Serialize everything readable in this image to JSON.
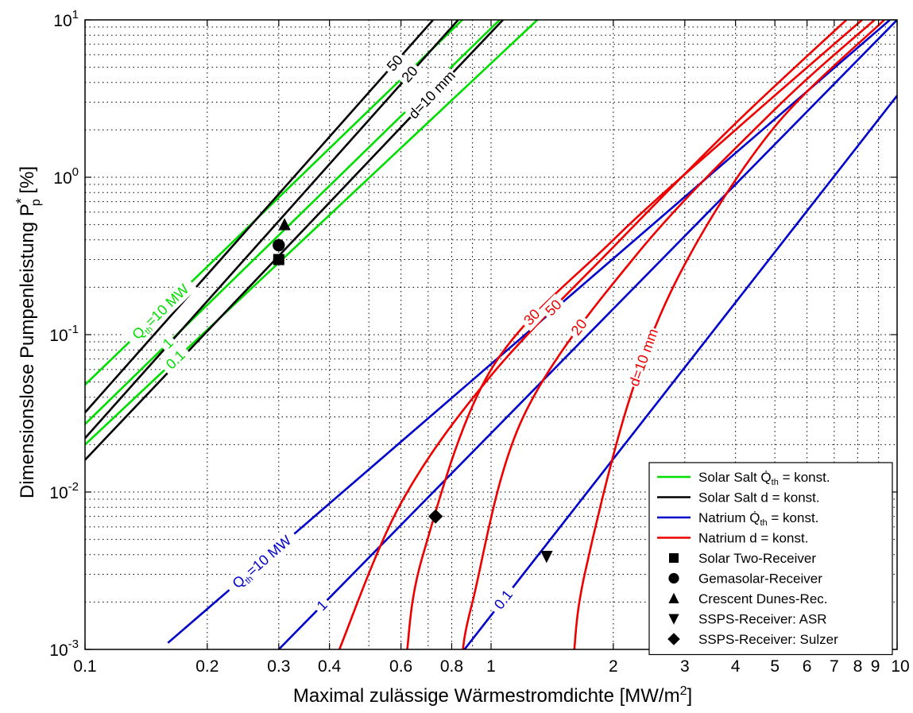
{
  "chart_data": {
    "type": "line",
    "x_scale": "log",
    "y_scale": "log",
    "xlim": [
      0.1,
      10
    ],
    "ylim": [
      0.001,
      10
    ],
    "grid": true,
    "xlabel": "Maximal zulässige Wärmestromdichte [MW/m",
    "xlabel_sup": "2",
    "xlabel_end": "]",
    "ylabel": "Dimensionslose Pumpenleistung P",
    "ylabel_sup": "*",
    "ylabel_sub": "p",
    "ylabel_end": " [%]",
    "x_ticks": [
      0.1,
      0.2,
      0.3,
      0.4,
      0.6,
      0.8,
      1,
      2,
      3,
      4,
      5,
      6,
      7,
      8,
      9,
      10
    ],
    "x_tick_labels": [
      "0.1",
      "0.2",
      "0.3",
      "0.4",
      "0.6",
      "0.8",
      "1",
      "2",
      "3",
      "4",
      "5",
      "6",
      "7",
      "8",
      "9",
      "10"
    ],
    "y_ticks": [
      0.001,
      0.01,
      0.1,
      1,
      10
    ],
    "y_tick_base": "10",
    "y_tick_exps": [
      "-3",
      "-2",
      "-1",
      "0",
      "1"
    ],
    "legend_position": "bottom-right",
    "legend": [
      {
        "label": "Solar Salt Q̇",
        "sub": "th",
        "tail": " = konst.",
        "color": "#00dd00",
        "kind": "line"
      },
      {
        "label": "Solar Salt d = konst.",
        "color": "#000000",
        "kind": "line"
      },
      {
        "label": "Natrium Q̇",
        "sub": "th",
        "tail": " = konst.",
        "color": "#0000cc",
        "kind": "line"
      },
      {
        "label": "Natrium d = konst.",
        "color": "#ee0000",
        "kind": "line"
      },
      {
        "label": "Solar Two-Receiver",
        "marker": "square",
        "kind": "marker"
      },
      {
        "label": "Gemasolar-Receiver",
        "marker": "circle",
        "kind": "marker"
      },
      {
        "label": "Crescent Dunes-Rec.",
        "marker": "triangle-up",
        "kind": "marker"
      },
      {
        "label": "SSPS-Receiver: ASR",
        "marker": "triangle-down",
        "kind": "marker"
      },
      {
        "label": "SSPS-Receiver: Sulzer",
        "marker": "diamond",
        "kind": "marker"
      }
    ],
    "series": [
      {
        "group": "Solar Salt Q_th = konst.",
        "color": "#00dd00",
        "kind": "power",
        "label": "Q_th=10 MW",
        "x": [
          0.1,
          0.85
        ],
        "y": [
          0.048,
          10
        ]
      },
      {
        "group": "Solar Salt Q_th = konst.",
        "color": "#00dd00",
        "kind": "power",
        "label": "1",
        "x": [
          0.1,
          1.05
        ],
        "y": [
          0.027,
          10
        ]
      },
      {
        "group": "Solar Salt Q_th = konst.",
        "color": "#00dd00",
        "kind": "power",
        "label": "0.1",
        "x": [
          0.1,
          1.3
        ],
        "y": [
          0.02,
          10
        ]
      },
      {
        "group": "Solar Salt d = konst.",
        "color": "#000000",
        "kind": "power",
        "label": "50",
        "x": [
          0.1,
          0.72
        ],
        "y": [
          0.032,
          10
        ]
      },
      {
        "group": "Solar Salt d = konst.",
        "color": "#000000",
        "kind": "power",
        "label": "20",
        "x": [
          0.1,
          0.83
        ],
        "y": [
          0.022,
          10
        ]
      },
      {
        "group": "Solar Salt d = konst.",
        "color": "#000000",
        "kind": "power",
        "label": "d=10 mm",
        "x": [
          0.1,
          1.07
        ],
        "y": [
          0.016,
          10
        ]
      },
      {
        "group": "Natrium Q_th = konst.",
        "color": "#0000cc",
        "kind": "power",
        "label": "Q_th=10 MW",
        "x": [
          0.16,
          9.6
        ],
        "y": [
          0.0011,
          10
        ]
      },
      {
        "group": "Natrium Q_th = konst.",
        "color": "#0000cc",
        "kind": "power",
        "label": "1",
        "x": [
          0.3,
          10
        ],
        "y": [
          0.001,
          10
        ]
      },
      {
        "group": "Natrium Q_th = konst.",
        "color": "#0000cc",
        "kind": "power",
        "label": "0.1",
        "x": [
          0.86,
          10
        ],
        "y": [
          0.001,
          3.3
        ]
      },
      {
        "group": "Natrium d = konst.",
        "color": "#ee0000",
        "kind": "curve",
        "label": "50",
        "x0": 0.42,
        "x": [
          0.6,
          1.0,
          2.0,
          4.0,
          7.5
        ],
        "y": [
          0.0085,
          0.055,
          0.36,
          2.2,
          10
        ]
      },
      {
        "group": "Natrium d = konst.",
        "color": "#ee0000",
        "kind": "curve",
        "label": "30",
        "x0": 0.62,
        "x": [
          0.68,
          1.0,
          2.0,
          4.0,
          8.2
        ],
        "y": [
          0.004,
          0.06,
          0.4,
          2.0,
          10
        ]
      },
      {
        "group": "Natrium d = konst.",
        "color": "#ee0000",
        "kind": "curve",
        "label": "20",
        "x0": 0.85,
        "x": [
          0.9,
          1.2,
          2.3,
          5.0,
          8.8
        ],
        "y": [
          0.002,
          0.03,
          0.33,
          2.7,
          10
        ]
      },
      {
        "group": "Natrium d = konst.",
        "color": "#ee0000",
        "kind": "curve",
        "label": "d=10 mm",
        "x0": 1.6,
        "x": [
          1.7,
          2.2,
          3.0,
          5.0,
          9.3
        ],
        "y": [
          0.003,
          0.04,
          0.28,
          2.1,
          10
        ]
      }
    ],
    "points": [
      {
        "name": "Solar Two-Receiver",
        "marker": "square",
        "x": 0.3,
        "y": 0.3
      },
      {
        "name": "Gemasolar-Receiver",
        "marker": "circle",
        "x": 0.3,
        "y": 0.37
      },
      {
        "name": "Crescent Dunes-Rec.",
        "marker": "triangle-up",
        "x": 0.31,
        "y": 0.5
      },
      {
        "name": "SSPS-Receiver: ASR",
        "marker": "triangle-down",
        "x": 1.37,
        "y": 0.0039
      },
      {
        "name": "SSPS-Receiver: Sulzer",
        "marker": "diamond",
        "x": 0.73,
        "y": 0.007
      }
    ]
  }
}
